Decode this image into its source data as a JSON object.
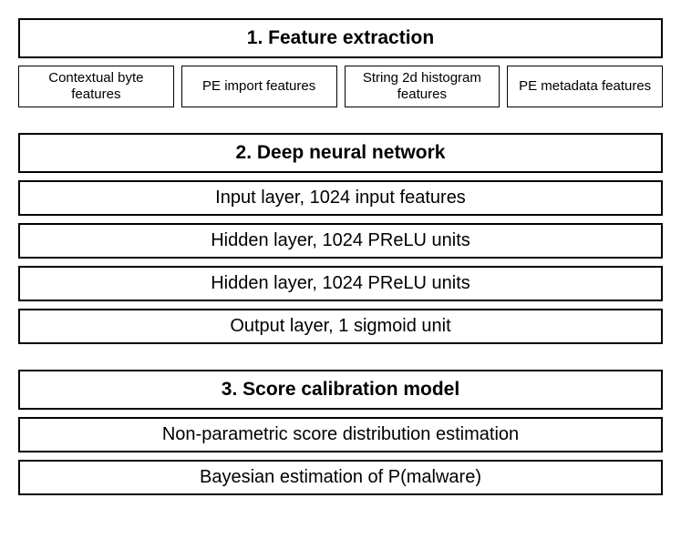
{
  "diagram": {
    "background_color": "#ffffff",
    "border_color": "#000000",
    "header_fontsize": 21,
    "header_fontweight": 700,
    "item_fontsize": 20,
    "feature_fontsize": 15,
    "sections": [
      {
        "title": "1. Feature extraction",
        "type": "columns",
        "items": [
          "Contextual byte features",
          "PE import features",
          "String 2d histogram features",
          "PE metadata features"
        ]
      },
      {
        "title": "2. Deep neural network",
        "type": "stack",
        "items": [
          "Input layer, 1024 input features",
          "Hidden layer, 1024 PReLU units",
          "Hidden layer, 1024 PReLU units",
          "Output layer, 1 sigmoid unit"
        ]
      },
      {
        "title": "3. Score calibration model",
        "type": "stack",
        "items": [
          "Non-parametric score distribution estimation",
          "Bayesian estimation of P(malware)"
        ]
      }
    ]
  }
}
